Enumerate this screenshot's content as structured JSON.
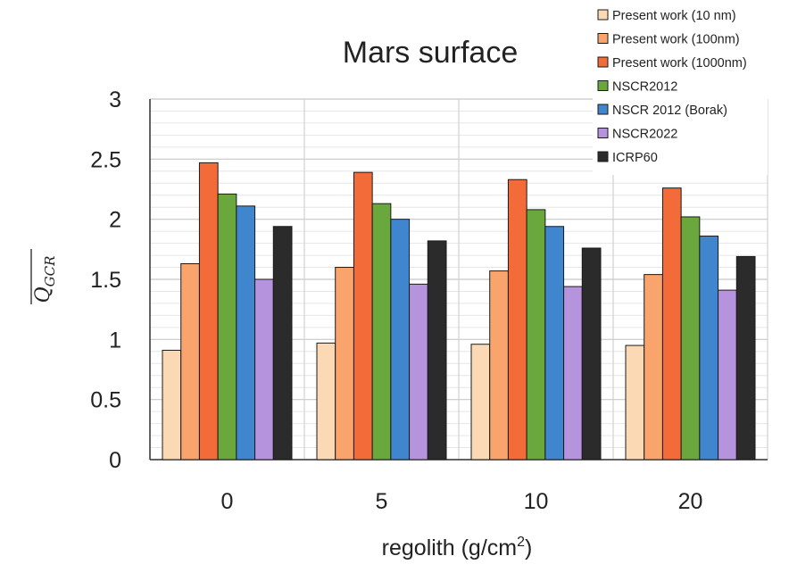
{
  "chart_data": {
    "type": "bar",
    "title": "Mars surface",
    "xlabel": "regolith (g/cm",
    "xlabel_sup": "2",
    "xlabel_close": ")",
    "ylabel_main": "Q",
    "ylabel_sub": "GCR",
    "categories": [
      "0",
      "5",
      "10",
      "20"
    ],
    "ylim": [
      0,
      3
    ],
    "yticks": [
      "0",
      "0.5",
      "1",
      "1.5",
      "2",
      "2.5",
      "3"
    ],
    "grid": true,
    "legend_position": "top-right",
    "series": [
      {
        "name": "Present work (10 nm)",
        "color": "#fbd9b5",
        "values": [
          0.91,
          0.97,
          0.96,
          0.95
        ]
      },
      {
        "name": "Present work (100nm)",
        "color": "#f8a46c",
        "values": [
          1.63,
          1.6,
          1.57,
          1.54
        ]
      },
      {
        "name": "Present work (1000nm)",
        "color": "#f26b38",
        "values": [
          2.47,
          2.39,
          2.33,
          2.26
        ]
      },
      {
        "name": "NSCR2012",
        "color": "#6aa83e",
        "values": [
          2.21,
          2.13,
          2.08,
          2.02
        ]
      },
      {
        "name": "NSCR 2012 (Borak)",
        "color": "#3f86cf",
        "values": [
          2.11,
          2.0,
          1.94,
          1.86
        ]
      },
      {
        "name": "NSCR2022",
        "color": "#b693dd",
        "values": [
          1.5,
          1.46,
          1.44,
          1.41
        ]
      },
      {
        "name": "ICRP60",
        "color": "#2b2b2b",
        "values": [
          1.94,
          1.82,
          1.76,
          1.69
        ]
      }
    ]
  }
}
